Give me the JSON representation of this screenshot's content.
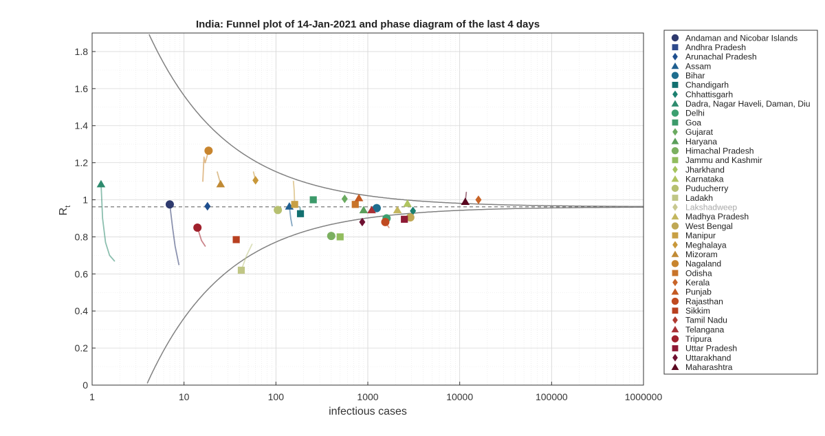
{
  "chart_data": {
    "type": "scatter",
    "title": "India: Funnel plot of 14-Jan-2021 and phase diagram of the last 4 days",
    "xlabel": "infectious cases",
    "ylabel": "R",
    "ylabel_subscript": "t",
    "x_scale": "log",
    "xlim": [
      1,
      1000000
    ],
    "ylim": [
      0,
      1.9
    ],
    "x_ticks": [
      1,
      10,
      100,
      1000,
      10000,
      100000,
      1000000
    ],
    "x_tick_labels": [
      "1",
      "10",
      "100",
      "1000",
      "10000",
      "100000",
      "1000000"
    ],
    "y_ticks": [
      0,
      0.2,
      0.4,
      0.6,
      0.8,
      1,
      1.2,
      1.4,
      1.6,
      1.8
    ],
    "y_tick_labels": [
      "0",
      "0.2",
      "0.4",
      "0.6",
      "0.8",
      "1",
      "1.2",
      "1.4",
      "1.6",
      "1.8"
    ],
    "grid": true,
    "legend_position": "right-outside",
    "reference_line": {
      "y": 0.962,
      "style": "dashed",
      "color": "#777777"
    },
    "funnel": {
      "center": 0.962,
      "k": 1.9,
      "color": "#808080"
    },
    "series": [
      {
        "name": "Andaman and Nicobar Islands",
        "marker": "circle",
        "color": "#2e3a6e",
        "x": 7,
        "y": 0.975,
        "trail": [
          [
            7,
            0.975
          ],
          [
            7.5,
            0.85
          ],
          [
            8,
            0.75
          ],
          [
            8.8,
            0.65
          ]
        ]
      },
      {
        "name": "Andhra Pradesh",
        "marker": "square",
        "color": "#2e4a8c",
        "x": null,
        "y": null,
        "trail": []
      },
      {
        "name": "Arunachal Pradesh",
        "marker": "diamond",
        "color": "#1f4f8f",
        "x": 18,
        "y": 0.965,
        "trail": []
      },
      {
        "name": "Assam",
        "marker": "triangle",
        "color": "#1f5f90",
        "x": 140,
        "y": 0.965,
        "trail": [
          [
            140,
            0.965
          ],
          [
            145,
            0.9
          ],
          [
            150,
            0.86
          ]
        ]
      },
      {
        "name": "Bihar",
        "marker": "circle",
        "color": "#1f6e8f",
        "x": 1250,
        "y": 0.955,
        "trail": []
      },
      {
        "name": "Chandigarh",
        "marker": "square",
        "color": "#137070",
        "x": 185,
        "y": 0.925,
        "trail": [
          [
            185,
            0.925
          ],
          [
            183,
            0.96
          ]
        ]
      },
      {
        "name": "Chhattisgarh",
        "marker": "diamond",
        "color": "#1c8070",
        "x": 3100,
        "y": 0.94,
        "trail": []
      },
      {
        "name": "Dadra, Nagar Haveli, Daman, Diu",
        "marker": "triangle",
        "color": "#2e8b6e",
        "x": 1.25,
        "y": 1.085,
        "trail": [
          [
            1.25,
            1.085
          ],
          [
            1.3,
            0.9
          ],
          [
            1.4,
            0.77
          ],
          [
            1.55,
            0.7
          ],
          [
            1.75,
            0.67
          ]
        ]
      },
      {
        "name": "Delhi",
        "marker": "circle",
        "color": "#3ca070",
        "x": 1600,
        "y": 0.9,
        "trail": []
      },
      {
        "name": "Goa",
        "marker": "square",
        "color": "#3c9a6a",
        "x": 255,
        "y": 1.0,
        "trail": []
      },
      {
        "name": "Gujarat",
        "marker": "diamond",
        "color": "#6aaa60",
        "x": 560,
        "y": 1.005,
        "trail": []
      },
      {
        "name": "Haryana",
        "marker": "triangle",
        "color": "#5a9e5a",
        "x": 900,
        "y": 0.945,
        "trail": []
      },
      {
        "name": "Himachal Pradesh",
        "marker": "circle",
        "color": "#7bb060",
        "x": 400,
        "y": 0.805,
        "trail": []
      },
      {
        "name": "Jammu and Kashmir",
        "marker": "square",
        "color": "#92bd5e",
        "x": 500,
        "y": 0.8,
        "trail": []
      },
      {
        "name": "Jharkhand",
        "marker": "diamond",
        "color": "#a5c45e",
        "x": null,
        "y": null,
        "trail": []
      },
      {
        "name": "Karnataka",
        "marker": "triangle",
        "color": "#b0c460",
        "x": 2700,
        "y": 0.98,
        "trail": []
      },
      {
        "name": "Puducherry",
        "marker": "circle",
        "color": "#b6c070",
        "x": 105,
        "y": 0.945,
        "trail": []
      },
      {
        "name": "Ladakh",
        "marker": "square",
        "color": "#c0c685",
        "x": 42,
        "y": 0.62,
        "trail": [
          [
            42,
            0.62
          ],
          [
            48,
            0.7
          ],
          [
            55,
            0.76
          ]
        ]
      },
      {
        "name": "Lakshadweep",
        "marker": "diamond",
        "color": "#c8c890",
        "x": null,
        "y": null,
        "trail": [],
        "faded": true
      },
      {
        "name": "Madhya Pradesh",
        "marker": "triangle",
        "color": "#c3b65e",
        "x": 2100,
        "y": 0.945,
        "trail": []
      },
      {
        "name": "West Bengal",
        "marker": "circle",
        "color": "#c0a855",
        "x": 2900,
        "y": 0.905,
        "trail": []
      },
      {
        "name": "Manipur",
        "marker": "square",
        "color": "#c8a045",
        "x": 160,
        "y": 0.975,
        "trail": [
          [
            160,
            0.975
          ],
          [
            158,
            1.05
          ],
          [
            155,
            1.1
          ]
        ]
      },
      {
        "name": "Meghalaya",
        "marker": "diamond",
        "color": "#c8983a",
        "x": 60,
        "y": 1.105,
        "trail": [
          [
            60,
            1.105
          ],
          [
            57,
            1.15
          ]
        ]
      },
      {
        "name": "Mizoram",
        "marker": "triangle",
        "color": "#c08a35",
        "x": 25,
        "y": 1.085,
        "trail": [
          [
            25,
            1.085
          ],
          [
            23,
            1.15
          ]
        ]
      },
      {
        "name": "Nagaland",
        "marker": "circle",
        "color": "#c8852e",
        "x": 18.5,
        "y": 1.265,
        "trail": [
          [
            18.5,
            1.265
          ],
          [
            17,
            1.2
          ],
          [
            16.5,
            1.23
          ],
          [
            16,
            1.1
          ]
        ]
      },
      {
        "name": "Odisha",
        "marker": "square",
        "color": "#c8742a",
        "x": 730,
        "y": 0.975,
        "trail": []
      },
      {
        "name": "Kerala",
        "marker": "diamond",
        "color": "#c86428",
        "x": 16000,
        "y": 1.0,
        "trail": []
      },
      {
        "name": "Punjab",
        "marker": "triangle",
        "color": "#c45a22",
        "x": 800,
        "y": 1.01,
        "trail": []
      },
      {
        "name": "Rajasthan",
        "marker": "circle",
        "color": "#c04a20",
        "x": 1550,
        "y": 0.88,
        "trail": [
          [
            1550,
            0.88
          ],
          [
            1700,
            0.85
          ]
        ]
      },
      {
        "name": "Sikkim",
        "marker": "square",
        "color": "#b84020",
        "x": 37,
        "y": 0.785,
        "trail": []
      },
      {
        "name": "Tamil Nadu",
        "marker": "diamond",
        "color": "#b03a30",
        "x": null,
        "y": null,
        "trail": []
      },
      {
        "name": "Telangana",
        "marker": "triangle",
        "color": "#a83035",
        "x": 1100,
        "y": 0.945,
        "trail": []
      },
      {
        "name": "Tripura",
        "marker": "circle",
        "color": "#a0202c",
        "x": 14,
        "y": 0.85,
        "trail": [
          [
            14,
            0.85
          ],
          [
            15.5,
            0.78
          ],
          [
            17,
            0.75
          ]
        ]
      },
      {
        "name": "Uttar Pradesh",
        "marker": "square",
        "color": "#8e1a35",
        "x": 2500,
        "y": 0.895,
        "trail": []
      },
      {
        "name": "Uttarakhand",
        "marker": "diamond",
        "color": "#6e1030",
        "x": 870,
        "y": 0.88,
        "trail": []
      },
      {
        "name": "Maharashtra",
        "marker": "triangle",
        "color": "#5a0820",
        "x": 11500,
        "y": 0.99,
        "trail": [
          [
            11500,
            0.99
          ],
          [
            11800,
            1.04
          ]
        ]
      }
    ]
  }
}
